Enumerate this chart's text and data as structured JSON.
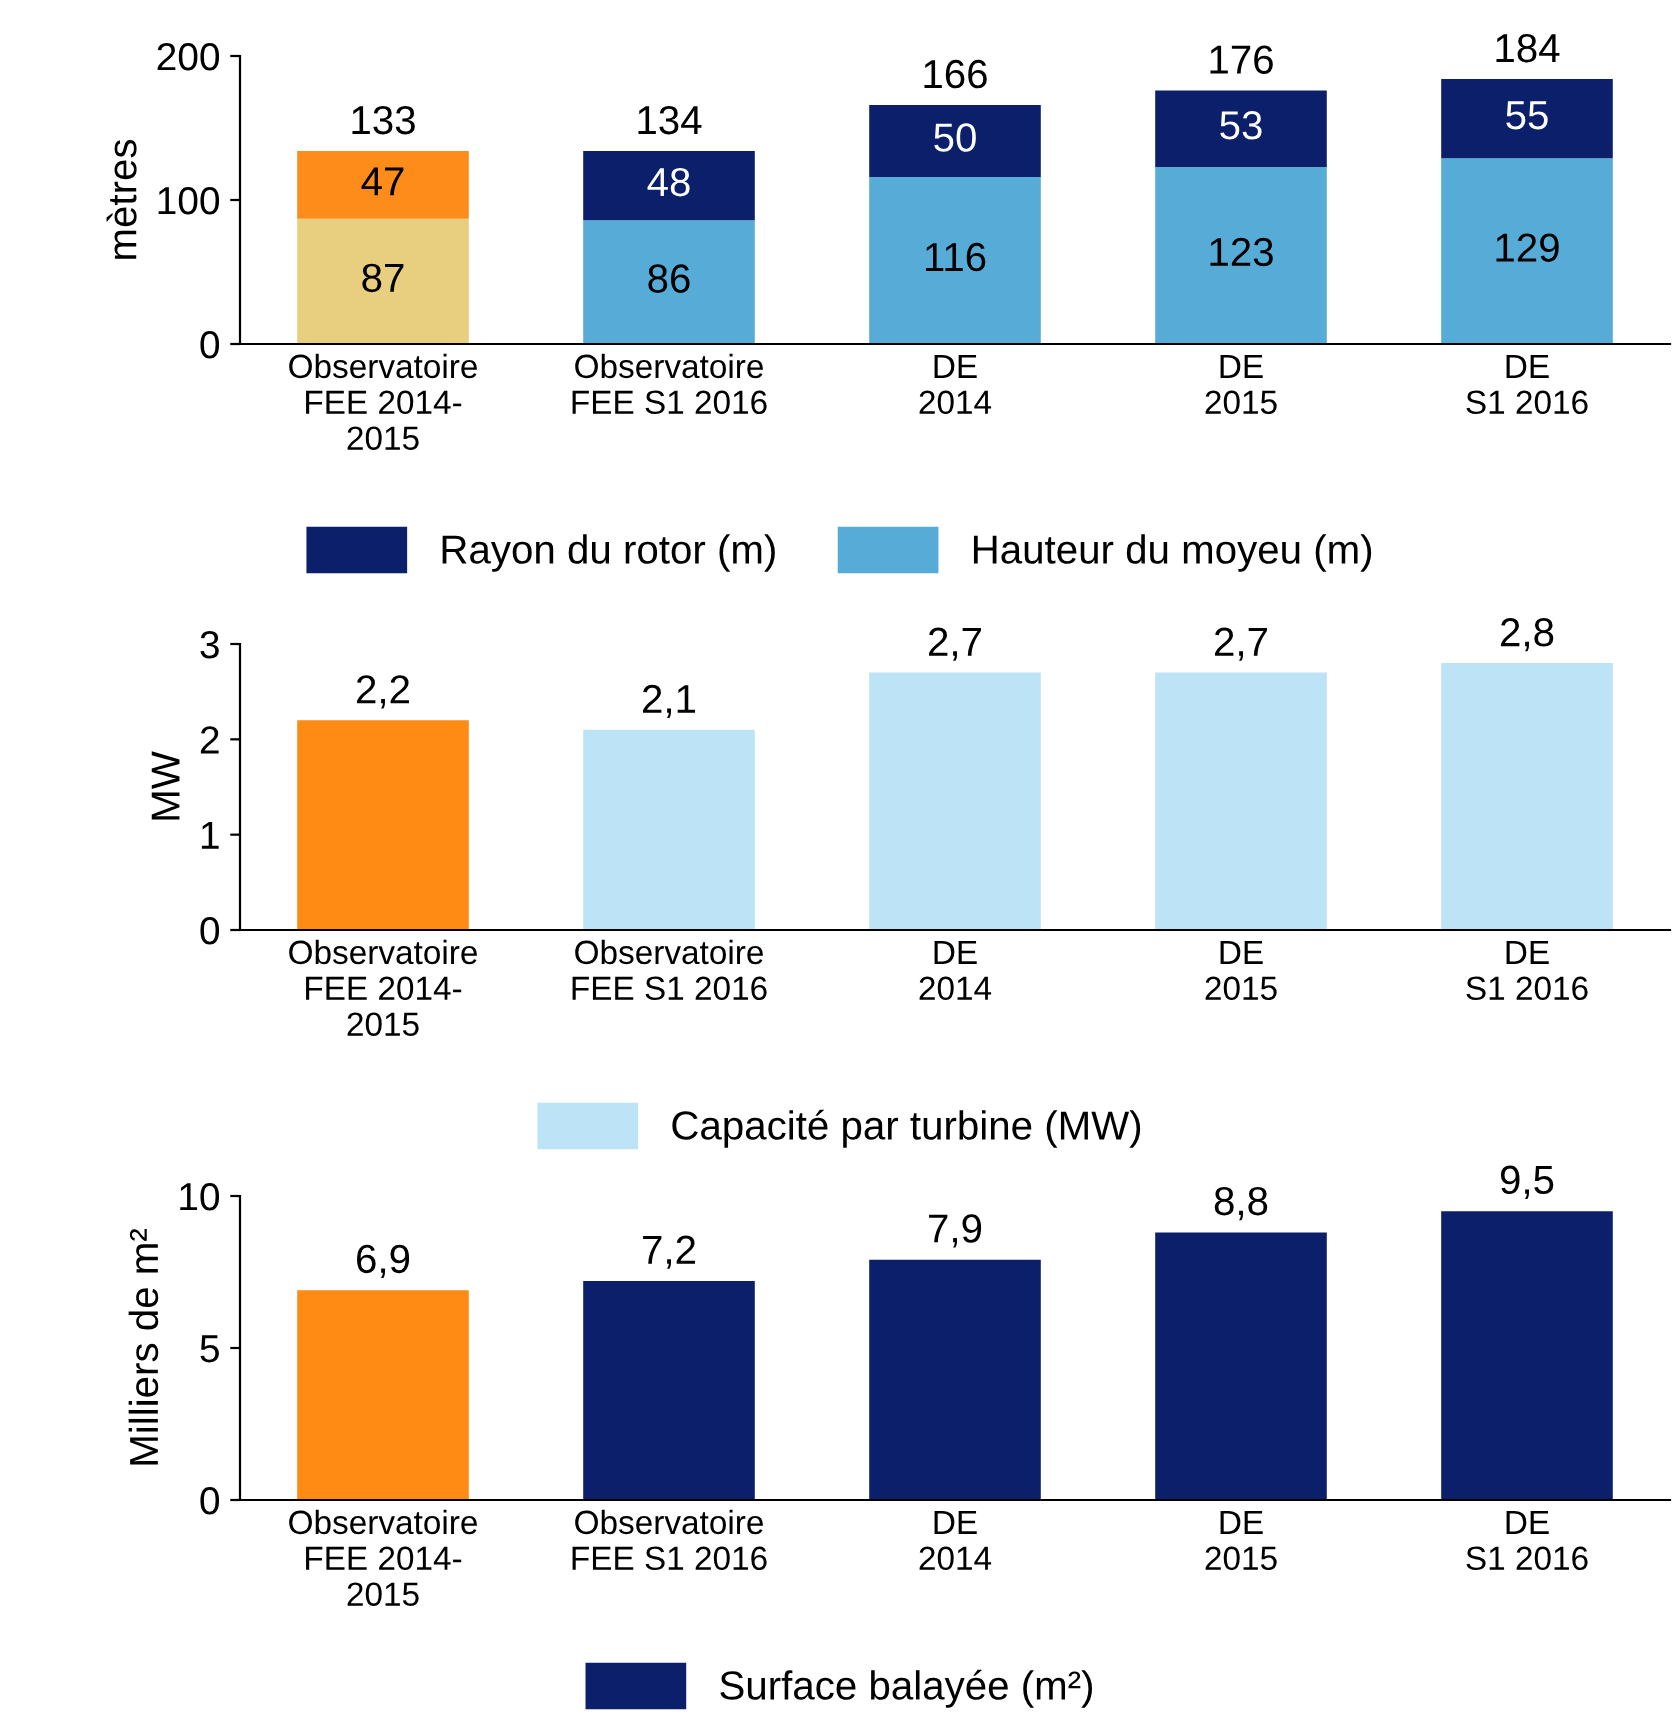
{
  "chart_data": [
    {
      "type": "bar",
      "stacked": true,
      "ylabel": "mètres",
      "categories": [
        "Observatoire\nFEE 2014-\n2015",
        "Observatoire\nFEE S1 2016",
        "DE\n2014",
        "DE\n2015",
        "DE\nS1 2016"
      ],
      "series": [
        {
          "name": "Hauteur du moyeu (m)",
          "color": "#56acd6",
          "colors": [
            "#e8cf7f",
            "#56acd6",
            "#56acd6",
            "#56acd6",
            "#56acd6"
          ],
          "values": [
            87,
            86,
            116,
            123,
            129
          ]
        },
        {
          "name": "Rayon du rotor (m)",
          "color": "#0c1f6b",
          "colors": [
            "#fd8c1a",
            "#0c1f6b",
            "#0c1f6b",
            "#0c1f6b",
            "#0c1f6b"
          ],
          "values": [
            47,
            48,
            50,
            53,
            55
          ]
        }
      ],
      "totals": [
        "133",
        "134",
        "166",
        "176",
        "184"
      ],
      "data_labels": true,
      "ylim": [
        0,
        200
      ],
      "yticks": [
        0,
        100,
        200
      ],
      "legend": "bottom",
      "grid": false
    },
    {
      "type": "bar",
      "ylabel": "MW",
      "categories": [
        "Observatoire\nFEE 2014-\n2015",
        "Observatoire\nFEE S1 2016",
        "DE\n2014",
        "DE\n2015",
        "DE\nS1 2016"
      ],
      "series": [
        {
          "name": "Capacité par turbine (MW)",
          "color": "#bde3f7",
          "colors": [
            "#ff8a14",
            "#bde3f7",
            "#bde3f7",
            "#bde3f7",
            "#bde3f7"
          ],
          "values": [
            2.2,
            2.1,
            2.7,
            2.7,
            2.8
          ],
          "value_labels": [
            "2,2",
            "2,1",
            "2,7",
            "2,7",
            "2,8"
          ]
        }
      ],
      "ylim": [
        0,
        3
      ],
      "yticks": [
        0,
        1,
        2,
        3
      ],
      "legend": "bottom",
      "grid": false
    },
    {
      "type": "bar",
      "ylabel": "Milliers de m²",
      "categories": [
        "Observatoire\nFEE 2014-\n2015",
        "Observatoire\nFEE S1 2016",
        "DE\n2014",
        "DE\n2015",
        "DE\nS1 2016"
      ],
      "series": [
        {
          "name": "Surface balayée (m²)",
          "color": "#0c1f6b",
          "colors": [
            "#ff8a14",
            "#0c1f6b",
            "#0c1f6b",
            "#0c1f6b",
            "#0c1f6b"
          ],
          "values": [
            6.9,
            7.2,
            7.9,
            8.8,
            9.5
          ],
          "value_labels": [
            "6,9",
            "7,2",
            "7,9",
            "8,8",
            "9,5"
          ]
        }
      ],
      "ylim": [
        0,
        10
      ],
      "yticks": [
        0,
        5,
        10
      ],
      "legend": "bottom",
      "grid": false
    }
  ]
}
